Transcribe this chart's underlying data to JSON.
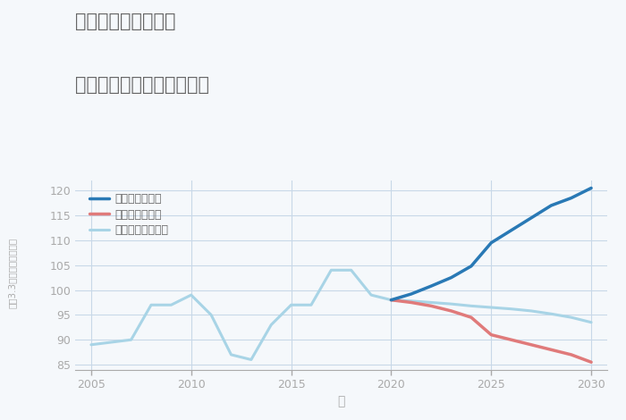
{
  "title_line1": "埼玉県熊谷市飯塚の",
  "title_line2": "中古マンションの価格推移",
  "xlabel": "年",
  "ylabel": "平（3.3㎡）単価（万円）",
  "historical_years": [
    2005,
    2007,
    2008,
    2009,
    2010,
    2011,
    2012,
    2013,
    2014,
    2015,
    2016,
    2017,
    2018,
    2019,
    2020
  ],
  "historical_values": [
    89,
    90,
    97,
    97,
    99,
    95,
    87,
    86,
    93,
    97,
    97,
    104,
    104,
    99,
    98
  ],
  "good_years": [
    2020,
    2021,
    2022,
    2023,
    2024,
    2025,
    2026,
    2027,
    2028,
    2029,
    2030
  ],
  "good_values": [
    98,
    99.2,
    100.8,
    102.5,
    104.8,
    109.5,
    112,
    114.5,
    117,
    118.5,
    120.5
  ],
  "bad_years": [
    2020,
    2021,
    2022,
    2023,
    2024,
    2025,
    2026,
    2027,
    2028,
    2029,
    2030
  ],
  "bad_values": [
    98,
    97.5,
    96.8,
    95.8,
    94.5,
    91,
    90,
    89,
    88,
    87,
    85.5
  ],
  "normal_years": [
    2020,
    2021,
    2022,
    2023,
    2024,
    2025,
    2026,
    2027,
    2028,
    2029,
    2030
  ],
  "normal_values": [
    98,
    97.8,
    97.5,
    97.2,
    96.8,
    96.5,
    96.2,
    95.8,
    95.2,
    94.5,
    93.5
  ],
  "good_color": "#2979b5",
  "bad_color": "#e07a7a",
  "normal_color": "#a8d4e6",
  "historical_color": "#a8d4e6",
  "ylim": [
    84,
    122
  ],
  "yticks": [
    85,
    90,
    95,
    100,
    105,
    110,
    115,
    120
  ],
  "xticks": [
    2005,
    2010,
    2015,
    2020,
    2025,
    2030
  ],
  "legend_good": "グッドシナリオ",
  "legend_bad": "バッドシナリオ",
  "legend_normal": "ノーマルシナリオ",
  "bg_color": "#f5f8fb",
  "grid_color": "#c8d8e8",
  "title_color": "#666666",
  "axis_color": "#aaaaaa",
  "linewidth_historical": 2.2,
  "linewidth_scenario": 2.5
}
